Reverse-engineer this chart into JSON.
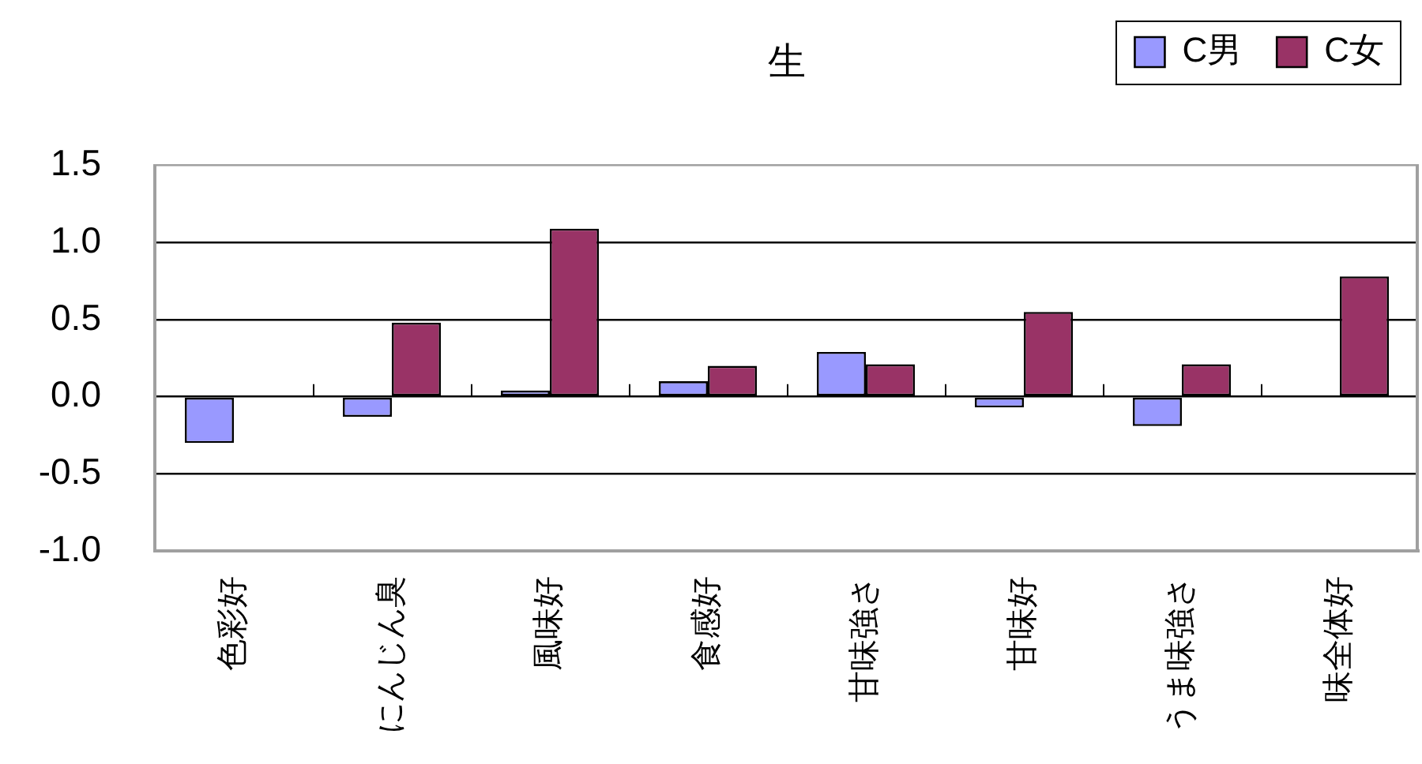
{
  "chart_data": {
    "type": "bar",
    "title": "生",
    "categories": [
      "色彩好",
      "にんじん臭",
      "風味好",
      "食感好",
      "甘味強さ",
      "甘味好",
      "うま味強さ",
      "味全体好"
    ],
    "series": [
      {
        "name": "C男",
        "color": "#9999ff",
        "values": [
          -0.3,
          -0.13,
          0.04,
          0.1,
          0.29,
          -0.07,
          -0.19,
          null
        ]
      },
      {
        "name": "C女",
        "color": "#993366",
        "values": [
          null,
          0.48,
          1.09,
          0.2,
          0.21,
          0.55,
          0.21,
          0.78
        ]
      }
    ],
    "ylim": [
      -1,
      1.5
    ],
    "yticks": [
      {
        "value": -1,
        "label": "-1.0"
      },
      {
        "value": -0.5,
        "label": "-0.5"
      },
      {
        "value": 0,
        "label": "0.0"
      },
      0.5,
      {
        "value": 1,
        "label": "1.0"
      },
      1.5
    ],
    "grid": "y",
    "legend": "top right"
  }
}
